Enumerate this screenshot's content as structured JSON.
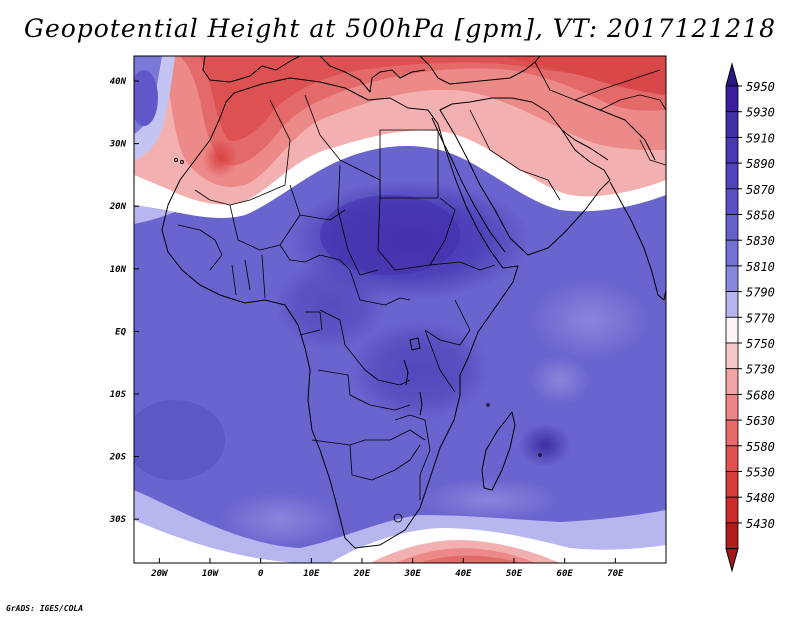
{
  "title": "Geopotential Height at 500hPa [gpm], VT: 2017121218",
  "credit": "GrADS: IGES/COLA",
  "map": {
    "lon_range": [
      -25,
      80
    ],
    "lat_range": [
      -37,
      44
    ],
    "lon_ticks": [
      {
        "label": "20W",
        "value": -20
      },
      {
        "label": "10W",
        "value": -10
      },
      {
        "label": "0",
        "value": 0
      },
      {
        "label": "10E",
        "value": 10
      },
      {
        "label": "20E",
        "value": 20
      },
      {
        "label": "30E",
        "value": 30
      },
      {
        "label": "40E",
        "value": 40
      },
      {
        "label": "50E",
        "value": 50
      },
      {
        "label": "60E",
        "value": 60
      },
      {
        "label": "70E",
        "value": 70
      }
    ],
    "lat_ticks": [
      {
        "label": "40N",
        "value": 40
      },
      {
        "label": "30N",
        "value": 30
      },
      {
        "label": "20N",
        "value": 20
      },
      {
        "label": "10N",
        "value": 10
      },
      {
        "label": "EQ",
        "value": 0
      },
      {
        "label": "10S",
        "value": -10
      },
      {
        "label": "20S",
        "value": -20
      },
      {
        "label": "30S",
        "value": -30
      }
    ]
  },
  "colorbar": {
    "levels": [
      {
        "label": "5950",
        "color": "#3b1f9e"
      },
      {
        "label": "5930",
        "color": "#4030a8"
      },
      {
        "label": "5910",
        "color": "#4838b4"
      },
      {
        "label": "5890",
        "color": "#5044bc"
      },
      {
        "label": "5870",
        "color": "#5a50c4"
      },
      {
        "label": "5850",
        "color": "#6660cc"
      },
      {
        "label": "5830",
        "color": "#7470d4"
      },
      {
        "label": "5810",
        "color": "#8a88de"
      },
      {
        "label": "5790",
        "color": "#b4b4ee"
      },
      {
        "label": "5770",
        "color": "#fbf4f4"
      },
      {
        "label": "5750",
        "color": "#f6c8c8"
      },
      {
        "label": "5730",
        "color": "#f2a4a4"
      },
      {
        "label": "5680",
        "color": "#ec8686"
      },
      {
        "label": "5630",
        "color": "#e66a6a"
      },
      {
        "label": "5580",
        "color": "#e05050"
      },
      {
        "label": "5530",
        "color": "#d63c3c"
      },
      {
        "label": "5480",
        "color": "#c82c2c"
      },
      {
        "label": "5430",
        "color": "#b01c1c"
      }
    ],
    "top_color": "#2a1888",
    "bottom_color": "#a01a1a"
  }
}
